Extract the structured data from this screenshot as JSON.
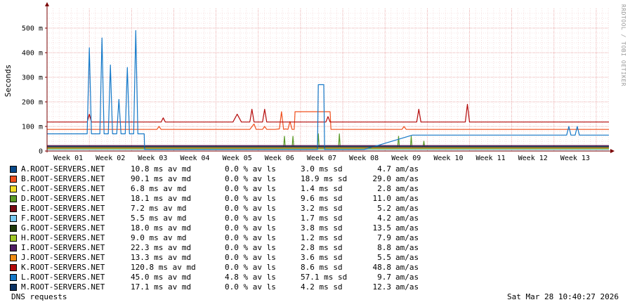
{
  "colors": {
    "background": "#ffffff",
    "grid_minor": "#f0c8c8",
    "grid_major": "#e8a0a0",
    "axis": "#7a0000",
    "frame": "#9a9a9a"
  },
  "watermark": "RRDTOOL / TOBI OETIKER",
  "footer": {
    "title": "DNS requests",
    "timestamp": "Sat Mar 28 10:40:27 2026"
  },
  "chart_data": {
    "type": "line",
    "ylabel": "Seconds",
    "ylim": [
      0,
      0.58
    ],
    "yticks": [
      0,
      0.1,
      0.2,
      0.3,
      0.4,
      0.5
    ],
    "ytick_labels": [
      "0",
      "100 m",
      "200 m",
      "300 m",
      "400 m",
      "500 m"
    ],
    "xlim": [
      0,
      13.3
    ],
    "xticks": [
      0.5,
      1.5,
      2.5,
      3.5,
      4.5,
      5.5,
      6.5,
      7.5,
      8.5,
      9.5,
      10.5,
      11.5,
      12.5
    ],
    "xtick_labels": [
      "Week 01",
      "Week 02",
      "Week 03",
      "Week 04",
      "Week 05",
      "Week 06",
      "Week 07",
      "Week 08",
      "Week 09",
      "Week 10",
      "Week 11",
      "Week 12",
      "Week 13"
    ],
    "grid": true,
    "legend_columns": [
      "name",
      "avg",
      "loss",
      "sd",
      "max",
      "unit"
    ],
    "series": [
      {
        "name": "A.ROOT-SERVERS.NET",
        "color": "#0a4a8a",
        "avg": "10.8 ms av md",
        "loss": "0.0 % av ls",
        "sd": "3.0 ms sd",
        "max": "4.7",
        "unit": "am/as",
        "points": [
          [
            0,
            0.011
          ],
          [
            13.3,
            0.011
          ]
        ]
      },
      {
        "name": "B.ROOT-SERVERS.NET",
        "color": "#f0501e",
        "avg": "90.1 ms av md",
        "loss": "0.0 % av ls",
        "sd": "18.9 ms sd",
        "max": "29.0",
        "unit": "am/as",
        "points": [
          [
            0,
            0.088
          ],
          [
            2.6,
            0.088
          ],
          [
            2.65,
            0.1
          ],
          [
            2.7,
            0.088
          ],
          [
            4.8,
            0.088
          ],
          [
            4.9,
            0.11
          ],
          [
            4.95,
            0.088
          ],
          [
            5.1,
            0.088
          ],
          [
            5.15,
            0.1
          ],
          [
            5.2,
            0.088
          ],
          [
            5.4,
            0.088
          ],
          [
            5.5,
            0.09
          ],
          [
            5.55,
            0.16
          ],
          [
            5.6,
            0.088
          ],
          [
            5.65,
            0.09
          ],
          [
            5.7,
            0.088
          ],
          [
            5.75,
            0.12
          ],
          [
            5.8,
            0.088
          ],
          [
            5.85,
            0.088
          ],
          [
            5.87,
            0.16
          ],
          [
            6.7,
            0.16
          ],
          [
            6.72,
            0.088
          ],
          [
            8.4,
            0.088
          ],
          [
            8.45,
            0.1
          ],
          [
            8.5,
            0.088
          ],
          [
            13.3,
            0.088
          ]
        ]
      },
      {
        "name": "C.ROOT-SERVERS.NET",
        "color": "#f0dc28",
        "avg": "6.8 ms av md",
        "loss": "0.0 % av ls",
        "sd": "1.4 ms sd",
        "max": "2.8",
        "unit": "am/as",
        "points": [
          [
            0,
            0.007
          ],
          [
            13.3,
            0.007
          ]
        ]
      },
      {
        "name": "D.ROOT-SERVERS.NET",
        "color": "#5a9a28",
        "avg": "18.1 ms av md",
        "loss": "0.0 % av ls",
        "sd": "9.6 ms sd",
        "max": "11.0",
        "unit": "am/as",
        "points": [
          [
            0,
            0.015
          ],
          [
            5.6,
            0.015
          ],
          [
            5.62,
            0.06
          ],
          [
            5.64,
            0.015
          ],
          [
            5.8,
            0.015
          ],
          [
            5.82,
            0.06
          ],
          [
            5.84,
            0.015
          ],
          [
            6.4,
            0.015
          ],
          [
            6.42,
            0.07
          ],
          [
            6.44,
            0.015
          ],
          [
            6.9,
            0.015
          ],
          [
            6.92,
            0.07
          ],
          [
            6.94,
            0.015
          ],
          [
            8.3,
            0.015
          ],
          [
            8.32,
            0.06
          ],
          [
            8.34,
            0.015
          ],
          [
            8.6,
            0.015
          ],
          [
            8.62,
            0.06
          ],
          [
            8.64,
            0.015
          ],
          [
            8.9,
            0.015
          ],
          [
            8.92,
            0.04
          ],
          [
            8.94,
            0.015
          ],
          [
            13.3,
            0.015
          ]
        ]
      },
      {
        "name": "E.ROOT-SERVERS.NET",
        "color": "#7a0a14",
        "avg": "7.2 ms av md",
        "loss": "0.0 % av ls",
        "sd": "3.2 ms sd",
        "max": "5.2",
        "unit": "am/as",
        "points": [
          [
            0,
            0.022
          ],
          [
            13.3,
            0.022
          ]
        ]
      },
      {
        "name": "F.ROOT-SERVERS.NET",
        "color": "#78c8f0",
        "avg": "5.5 ms av md",
        "loss": "0.0 % av ls",
        "sd": "1.7 ms sd",
        "max": "4.2",
        "unit": "am/as",
        "points": [
          [
            0,
            0.006
          ],
          [
            13.3,
            0.006
          ]
        ]
      },
      {
        "name": "G.ROOT-SERVERS.NET",
        "color": "#1e3a0a",
        "avg": "18.0 ms av md",
        "loss": "0.0 % av ls",
        "sd": "3.8 ms sd",
        "max": "13.5",
        "unit": "am/as",
        "points": [
          [
            0,
            0.018
          ],
          [
            13.3,
            0.018
          ]
        ]
      },
      {
        "name": "H.ROOT-SERVERS.NET",
        "color": "#a0c828",
        "avg": "9.0 ms av md",
        "loss": "0.0 % av ls",
        "sd": "1.2 ms sd",
        "max": "7.9",
        "unit": "am/as",
        "points": [
          [
            0,
            0.009
          ],
          [
            13.3,
            0.009
          ]
        ]
      },
      {
        "name": "I.ROOT-SERVERS.NET",
        "color": "#501e64",
        "avg": "22.3 ms av md",
        "loss": "0.0 % av ls",
        "sd": "2.8 ms sd",
        "max": "8.8",
        "unit": "am/as",
        "points": [
          [
            0,
            0.022
          ],
          [
            13.3,
            0.022
          ]
        ]
      },
      {
        "name": "J.ROOT-SERVERS.NET",
        "color": "#f08c14",
        "avg": "13.3 ms av md",
        "loss": "0.0 % av ls",
        "sd": "3.6 ms sd",
        "max": "5.5",
        "unit": "am/as",
        "points": [
          [
            0,
            0.013
          ],
          [
            13.3,
            0.013
          ]
        ]
      },
      {
        "name": "K.ROOT-SERVERS.NET",
        "color": "#b40a0a",
        "avg": "120.8 ms av md",
        "loss": "0.0 % av ls",
        "sd": "8.6 ms sd",
        "max": "48.8",
        "unit": "am/as",
        "points": [
          [
            0,
            0.118
          ],
          [
            0.95,
            0.118
          ],
          [
            1.0,
            0.15
          ],
          [
            1.05,
            0.118
          ],
          [
            2.7,
            0.118
          ],
          [
            2.75,
            0.135
          ],
          [
            2.8,
            0.118
          ],
          [
            4.4,
            0.118
          ],
          [
            4.5,
            0.15
          ],
          [
            4.6,
            0.118
          ],
          [
            4.8,
            0.118
          ],
          [
            4.85,
            0.17
          ],
          [
            4.9,
            0.118
          ],
          [
            5.1,
            0.118
          ],
          [
            5.15,
            0.17
          ],
          [
            5.2,
            0.118
          ],
          [
            6.6,
            0.118
          ],
          [
            6.65,
            0.14
          ],
          [
            6.7,
            0.118
          ],
          [
            8.75,
            0.118
          ],
          [
            8.8,
            0.17
          ],
          [
            8.85,
            0.118
          ],
          [
            9.9,
            0.118
          ],
          [
            9.95,
            0.19
          ],
          [
            10.0,
            0.118
          ],
          [
            13.3,
            0.118
          ]
        ]
      },
      {
        "name": "L.ROOT-SERVERS.NET",
        "color": "#1478c8",
        "avg": "45.0 ms av md",
        "loss": "4.8 % av ls",
        "sd": "57.1 ms sd",
        "max": "9.7",
        "unit": "am/as",
        "points": [
          [
            0,
            0.07
          ],
          [
            0.95,
            0.07
          ],
          [
            1.0,
            0.42
          ],
          [
            1.05,
            0.07
          ],
          [
            1.25,
            0.07
          ],
          [
            1.3,
            0.46
          ],
          [
            1.35,
            0.07
          ],
          [
            1.45,
            0.07
          ],
          [
            1.5,
            0.35
          ],
          [
            1.55,
            0.07
          ],
          [
            1.65,
            0.07
          ],
          [
            1.7,
            0.21
          ],
          [
            1.75,
            0.07
          ],
          [
            1.85,
            0.07
          ],
          [
            1.9,
            0.34
          ],
          [
            1.95,
            0.07
          ],
          [
            2.05,
            0.07
          ],
          [
            2.1,
            0.49
          ],
          [
            2.15,
            0.07
          ],
          [
            2.3,
            0.07
          ],
          [
            2.31,
            0.006
          ],
          [
            6.4,
            0.006
          ],
          [
            6.42,
            0.27
          ],
          [
            6.55,
            0.27
          ],
          [
            6.57,
            0.006
          ],
          [
            7.5,
            0.006
          ],
          [
            8.65,
            0.065
          ],
          [
            12.3,
            0.065
          ],
          [
            12.35,
            0.1
          ],
          [
            12.4,
            0.065
          ],
          [
            12.5,
            0.065
          ],
          [
            12.55,
            0.1
          ],
          [
            12.6,
            0.065
          ],
          [
            13.3,
            0.065
          ]
        ]
      },
      {
        "name": "M.ROOT-SERVERS.NET",
        "color": "#0a3264",
        "avg": "17.1 ms av md",
        "loss": "0.0 % av ls",
        "sd": "4.2 ms sd",
        "max": "12.3",
        "unit": "am/as",
        "points": [
          [
            0,
            0.017
          ],
          [
            13.3,
            0.017
          ]
        ]
      }
    ]
  }
}
